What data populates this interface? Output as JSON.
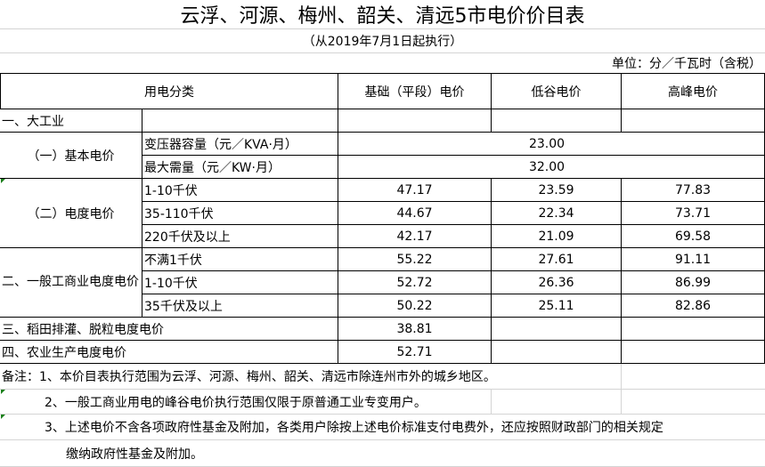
{
  "title": "云浮、河源、梅州、韶关、清远5市电价价目表",
  "subtitle": "（从2019年7月1日起执行）",
  "unit": "单位：分／千瓦时（含税）",
  "headers": {
    "category": "用电分类",
    "base": "基础（平段）电价",
    "valley": "低谷电价",
    "peak": "高峰电价"
  },
  "sections": {
    "large_industry": "一、大工业",
    "basic_price": "（一）基本电价",
    "energy_price": "（二）电度电价",
    "general": "二、一般工商业电度电价",
    "paddy": "三、稻田排灌、脱粒电度电价",
    "agri": "四、农业生产电度电价"
  },
  "basic_rows": [
    {
      "item": "变压器容量（元／KVA·月）",
      "value": "23.00"
    },
    {
      "item": "最大需量（元／KW·月）",
      "value": "32.00"
    }
  ],
  "energy_rows": [
    {
      "item": "1-10千伏",
      "base": "47.17",
      "valley": "23.59",
      "peak": "77.83"
    },
    {
      "item": "35-110千伏",
      "base": "44.67",
      "valley": "22.34",
      "peak": "73.71"
    },
    {
      "item": "220千伏及以上",
      "base": "42.17",
      "valley": "21.09",
      "peak": "69.58"
    }
  ],
  "general_rows": [
    {
      "item": "不满1千伏",
      "base": "55.22",
      "valley": "27.61",
      "peak": "91.11"
    },
    {
      "item": "1-10千伏",
      "base": "52.72",
      "valley": "26.36",
      "peak": "86.99"
    },
    {
      "item": "35千伏及以上",
      "base": "50.22",
      "valley": "25.11",
      "peak": "82.86"
    }
  ],
  "paddy_value": "38.81",
  "agri_value": "52.71",
  "notes": [
    "备注：1、本价目表执行范围为云浮、河源、梅州、韶关、清远市除连州市外的城乡地区。",
    "2、一般工商业用电的峰谷电价执行范围仅限于原普通工业专变用户。",
    "3、上述电价不含各项政府性基金及附加，各类用户除按上述电价标准支付电费外，还应按照财政部门的相关规定",
    "缴纳政府性基金及附加。"
  ]
}
